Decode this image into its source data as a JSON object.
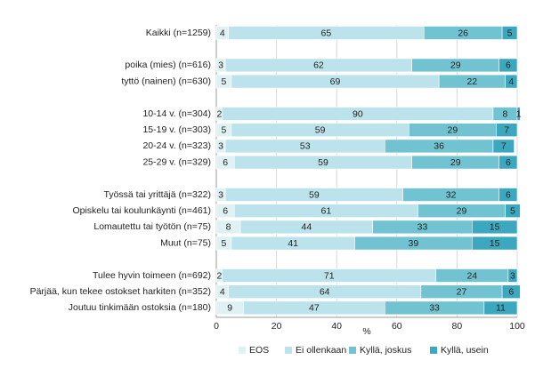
{
  "chart_data": {
    "type": "stacked-bar-horizontal",
    "categories": [
      "Kaikki (n=1259)",
      null,
      "poika (mies) (n=616)",
      "tyttö (nainen) (n=630)",
      null,
      "10-14 v. (n=304)",
      "15-19 v. (n=303)",
      "20-24 v. (n=323)",
      "25-29 v. (n=329)",
      null,
      "Työssä tai yrittäjä (n=322)",
      "Opiskelu tai koulunkäynti (n=461)",
      "Lomautettu tai työtön (n=75)",
      "Muut (n=75)",
      null,
      "Tulee hyvin toimeen (n=692)",
      "Pärjää, kun tekee ostokset harkiten (n=352)",
      "Joutuu tinkimään ostoksia (n=180)"
    ],
    "series": [
      {
        "name": "EOS",
        "color": "#e0f1f4",
        "values": [
          4,
          null,
          3,
          5,
          null,
          2,
          5,
          3,
          6,
          null,
          3,
          6,
          8,
          5,
          null,
          2,
          4,
          9
        ]
      },
      {
        "name": "Ei ollenkaan",
        "color": "#bce3eb",
        "values": [
          65,
          null,
          62,
          69,
          null,
          90,
          59,
          53,
          59,
          null,
          59,
          61,
          44,
          41,
          null,
          71,
          64,
          47
        ]
      },
      {
        "name": "Kyllä, joskus",
        "color": "#72c3d2",
        "values": [
          26,
          null,
          29,
          22,
          null,
          8,
          29,
          36,
          29,
          null,
          32,
          29,
          33,
          39,
          null,
          24,
          27,
          33
        ]
      },
      {
        "name": "Kyllä, usein",
        "color": "#3ba8c0",
        "values": [
          5,
          null,
          6,
          4,
          null,
          1,
          7,
          7,
          6,
          null,
          6,
          5,
          15,
          15,
          null,
          3,
          6,
          11
        ]
      }
    ],
    "xlabel": "%",
    "xlim": [
      0,
      100
    ],
    "xticks": [
      0,
      20,
      40,
      60,
      80,
      100
    ],
    "grid": true
  }
}
